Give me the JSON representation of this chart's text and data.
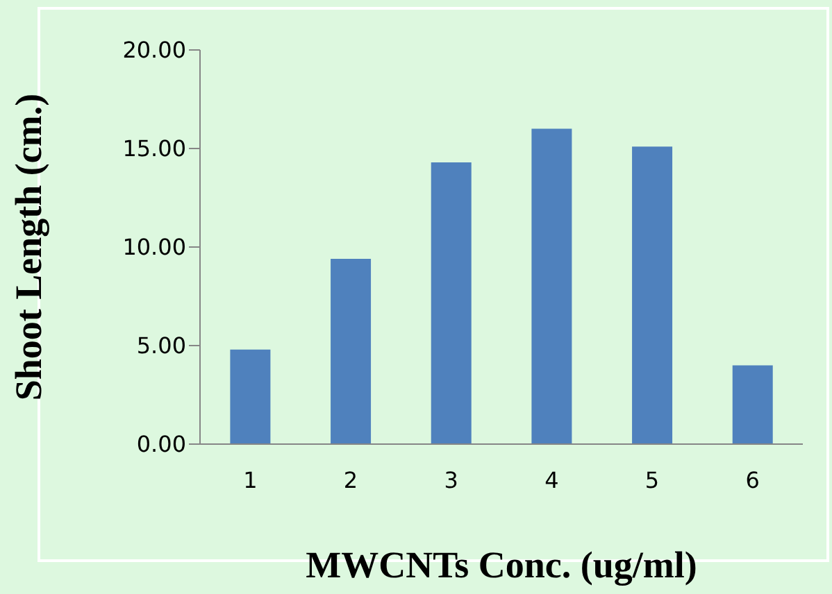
{
  "chart_data": {
    "type": "bar",
    "xlabel": "MWCNTs  Conc. (ug/ml)",
    "ylabel": "Shoot Length (cm.)",
    "categories": [
      "1",
      "2",
      "3",
      "4",
      "5",
      "6"
    ],
    "values": [
      4.8,
      9.4,
      14.3,
      16.0,
      15.1,
      4.0
    ],
    "color": "#4f81bd",
    "ylim": [
      0,
      20
    ],
    "yticks": [
      {
        "value": 0,
        "label": "0.00"
      },
      {
        "value": 5,
        "label": "5.00"
      },
      {
        "value": 10,
        "label": "10.00"
      },
      {
        "value": 15,
        "label": "15.00"
      },
      {
        "value": 20,
        "label": "20.00"
      }
    ],
    "grid": false,
    "legend": false
  }
}
